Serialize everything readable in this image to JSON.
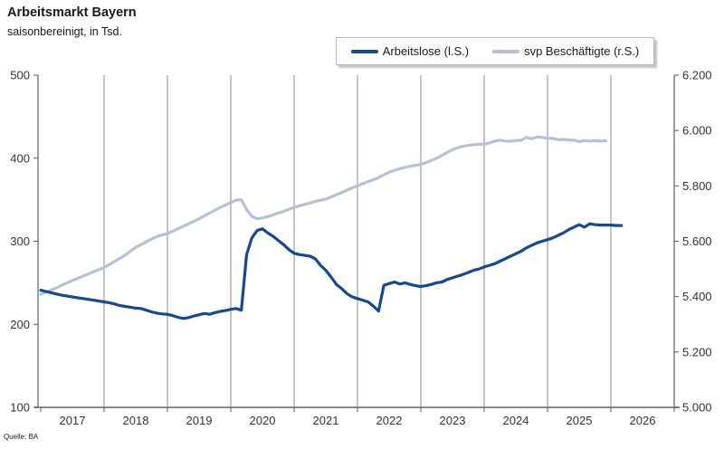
{
  "header": {
    "title": "Arbeitsmarkt Bayern",
    "subtitle": "saisonbereinigt, in Tsd."
  },
  "source": "Quelle: BA",
  "legend": {
    "items": [
      {
        "label": "Arbeitslose (l.S.)"
      },
      {
        "label": "svp Beschäftigte (r.S.)"
      }
    ]
  },
  "chart_data": {
    "type": "line",
    "title": "Arbeitsmarkt Bayern",
    "subtitle": "saisonbereinigt, in Tsd.",
    "grid": "vertical-only",
    "legend_position": "top",
    "x_axis": {
      "year_labels": [
        "2017",
        "2018",
        "2019",
        "2020",
        "2021",
        "2022",
        "2023",
        "2024",
        "2025",
        "2026"
      ],
      "gridline_years": [
        2018,
        2019,
        2020,
        2021,
        2022,
        2023,
        2024,
        2025,
        2026
      ],
      "tick_years": [
        2017,
        2018,
        2019,
        2020,
        2021,
        2022,
        2023,
        2024,
        2025,
        2026,
        2027
      ],
      "range": [
        2017,
        2027
      ]
    },
    "left_axis": {
      "min": 100,
      "max": 500,
      "ticks": [
        {
          "value": 500,
          "label": "500"
        },
        {
          "value": 400,
          "label": "400"
        },
        {
          "value": 300,
          "label": "300"
        },
        {
          "value": 200,
          "label": "200"
        },
        {
          "value": 100,
          "label": "100"
        }
      ]
    },
    "right_axis": {
      "min": 5000,
      "max": 6200,
      "ticks": [
        {
          "value": 6200,
          "label": "6.200"
        },
        {
          "value": 6000,
          "label": "6.000"
        },
        {
          "value": 5800,
          "label": "5.800"
        },
        {
          "value": 5600,
          "label": "5.600"
        },
        {
          "value": 5400,
          "label": "5.400"
        },
        {
          "value": 5200,
          "label": "5.200"
        },
        {
          "value": 5000,
          "label": "5.000"
        }
      ]
    },
    "series": [
      {
        "name": "Arbeitslose (l.S.)",
        "axis": "left",
        "color": "#17498f",
        "start_year": 2017.0,
        "step_months": 1,
        "values": [
          241,
          239.5,
          238,
          236.5,
          235,
          234,
          233,
          232,
          231,
          230,
          229,
          228,
          227,
          226,
          224.5,
          222.5,
          221.5,
          220.5,
          219.5,
          219,
          217,
          215,
          213.5,
          212.5,
          212,
          210.5,
          208.5,
          207,
          208,
          210,
          211.5,
          213,
          212,
          214,
          215.5,
          216.5,
          218,
          219,
          217,
          284,
          304,
          313,
          315,
          310,
          306,
          301,
          296,
          290,
          285.5,
          284,
          283,
          282,
          279,
          271,
          265,
          257,
          248,
          243,
          237,
          233,
          231,
          229,
          227,
          222,
          216,
          247,
          249,
          251,
          248.5,
          250,
          248,
          246.5,
          245.5,
          246.5,
          248,
          250,
          251,
          254,
          256,
          258,
          260,
          262.5,
          265,
          266.5,
          269,
          271,
          273,
          276,
          279,
          282,
          285,
          288,
          292,
          295,
          298,
          300,
          302,
          304,
          307,
          310,
          314,
          317,
          320,
          317,
          321,
          320,
          319.5,
          319.5,
          319.5,
          319,
          319
        ]
      },
      {
        "name": "svp Beschäftigte (r.S.)",
        "axis": "right",
        "color": "#b6c1d3",
        "start_year": 2017.0,
        "step_months": 1,
        "values": [
          5408,
          5416,
          5424,
          5432,
          5441,
          5450,
          5458,
          5466,
          5474,
          5482,
          5490,
          5497,
          5505,
          5516,
          5527,
          5538,
          5550,
          5564,
          5578,
          5588,
          5598,
          5608,
          5617,
          5623,
          5628,
          5636,
          5645,
          5654,
          5663,
          5672,
          5681,
          5692,
          5702,
          5712,
          5722,
          5731,
          5740,
          5748,
          5750,
          5715,
          5690,
          5681,
          5684,
          5689,
          5695,
          5702,
          5708,
          5715,
          5722,
          5728,
          5733,
          5738,
          5744,
          5748,
          5752,
          5760,
          5768,
          5776,
          5784,
          5793,
          5800,
          5808,
          5815,
          5822,
          5830,
          5840,
          5849,
          5856,
          5862,
          5867,
          5871,
          5874,
          5877,
          5884,
          5892,
          5900,
          5910,
          5921,
          5931,
          5938,
          5943,
          5946,
          5949,
          5951,
          5950,
          5955,
          5962,
          5965,
          5962,
          5961,
          5964,
          5965,
          5975,
          5970,
          5977,
          5975,
          5972,
          5971,
          5967,
          5968,
          5966,
          5965,
          5960,
          5964,
          5962,
          5963,
          5962,
          5963
        ]
      }
    ]
  }
}
